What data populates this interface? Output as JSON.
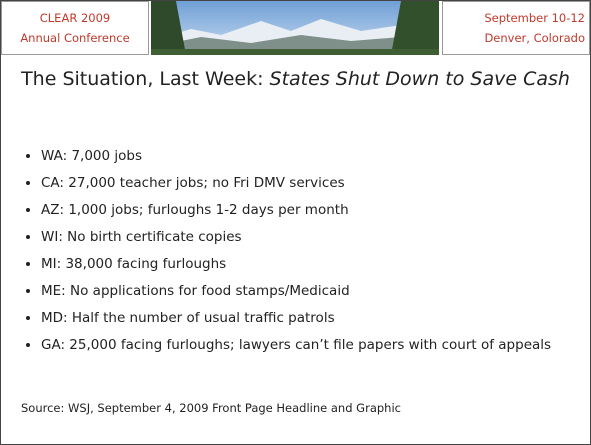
{
  "header": {
    "left": [
      "CLEAR 2009",
      "Annual Conference"
    ],
    "right": [
      "September 10-12",
      "Denver, Colorado"
    ]
  },
  "title": {
    "plain": "The Situation, Last Week: ",
    "italic": "States Shut Down to Save Cash"
  },
  "bullets": [
    "WA:  7,000 jobs",
    "CA:  27,000 teacher jobs; no Fri DMV services",
    "AZ:  1,000 jobs; furloughs 1-2 days per month",
    "WI:  No birth certificate copies",
    "MI:  38,000 facing furloughs",
    "ME:  No applications for food stamps/Medicaid",
    "MD:  Half the number of usual traffic patrols",
    "GA:  25,000 facing furloughs; lawyers can’t file papers with court of appeals"
  ],
  "source": "Source: WSJ, September 4, 2009 Front Page Headline and Graphic"
}
